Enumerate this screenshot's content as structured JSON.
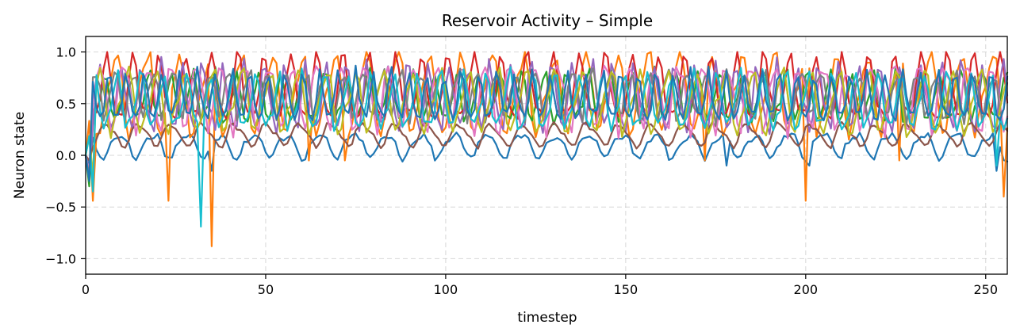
{
  "chart_data": {
    "type": "line",
    "title": "Reservoir Activity – Simple",
    "xlabel": "timestep",
    "ylabel": "Neuron state",
    "xlim": [
      0,
      256
    ],
    "ylim": [
      -1.15,
      1.15
    ],
    "xticks": [
      0,
      50,
      100,
      150,
      200,
      250
    ],
    "yticks": [
      -1.0,
      -0.5,
      0.0,
      0.5,
      1.0
    ],
    "xtick_labels": [
      "0",
      "50",
      "100",
      "150",
      "200",
      "250"
    ],
    "ytick_labels": [
      "−1.0",
      "−0.5",
      "0.0",
      "0.5",
      "1.0"
    ],
    "grid": true,
    "legend": "none",
    "x_start": 0,
    "x_end": 256,
    "series": [
      {
        "color": "#1f77b4",
        "period": 9.3,
        "baseline": 0.1,
        "amplitude": 0.11,
        "harmonic": 0.03,
        "noise": 0.03,
        "dips": [
          [
            1,
            -0.1
          ],
          [
            35,
            -0.15
          ],
          [
            178,
            -0.1
          ],
          [
            201,
            -0.1
          ],
          [
            253,
            -0.15
          ]
        ]
      },
      {
        "color": "#ff7f0e",
        "period": 8.7,
        "baseline": 0.6,
        "amplitude": 0.35,
        "harmonic": 0.1,
        "noise": 0.06,
        "dips": [
          [
            2,
            -0.44
          ],
          [
            23,
            -0.44
          ],
          [
            35,
            -0.88
          ],
          [
            62,
            -0.05
          ],
          [
            72,
            -0.05
          ],
          [
            172,
            -0.05
          ],
          [
            200,
            -0.44
          ],
          [
            226,
            -0.05
          ],
          [
            255,
            -0.4
          ]
        ]
      },
      {
        "color": "#2ca02c",
        "period": 6.1,
        "baseline": 0.55,
        "amplitude": 0.22,
        "harmonic": 0.06,
        "noise": 0.05,
        "dips": [
          [
            1,
            -0.3
          ]
        ]
      },
      {
        "color": "#d62728",
        "period": 7.3,
        "baseline": 0.62,
        "amplitude": 0.3,
        "harmonic": 0.08,
        "noise": 0.05,
        "dips": [
          [
            1,
            -0.2
          ]
        ]
      },
      {
        "color": "#9467bd",
        "period": 5.7,
        "baseline": 0.55,
        "amplitude": 0.3,
        "harmonic": 0.08,
        "noise": 0.05,
        "dips": [
          [
            1,
            -0.2
          ]
        ]
      },
      {
        "color": "#8c564b",
        "period": 8.9,
        "baseline": 0.2,
        "amplitude": 0.1,
        "harmonic": 0.03,
        "noise": 0.02,
        "dips": [
          [
            1,
            -0.05
          ]
        ]
      },
      {
        "color": "#e377c2",
        "period": 6.7,
        "baseline": 0.58,
        "amplitude": 0.3,
        "harmonic": 0.07,
        "noise": 0.05,
        "dips": [
          [
            1,
            -0.15
          ]
        ]
      },
      {
        "color": "#7f7f7f",
        "period": 5.3,
        "baseline": 0.6,
        "amplitude": 0.22,
        "harmonic": 0.06,
        "noise": 0.05,
        "dips": [
          [
            1,
            -0.2
          ]
        ]
      },
      {
        "color": "#bcbd22",
        "period": 7.9,
        "baseline": 0.52,
        "amplitude": 0.27,
        "harmonic": 0.08,
        "noise": 0.05,
        "dips": [
          [
            2,
            -0.2
          ]
        ]
      },
      {
        "color": "#17becf",
        "period": 6.4,
        "baseline": 0.5,
        "amplitude": 0.25,
        "harmonic": 0.07,
        "noise": 0.05,
        "dips": [
          [
            2,
            -0.35
          ],
          [
            32,
            -0.69
          ],
          [
            253,
            -0.1
          ]
        ]
      },
      {
        "color": "#1f77b4",
        "period": 4.9,
        "baseline": 0.55,
        "amplitude": 0.22,
        "harmonic": 0.05,
        "noise": 0.05,
        "dips": [
          [
            1,
            -0.25
          ]
        ]
      }
    ]
  }
}
